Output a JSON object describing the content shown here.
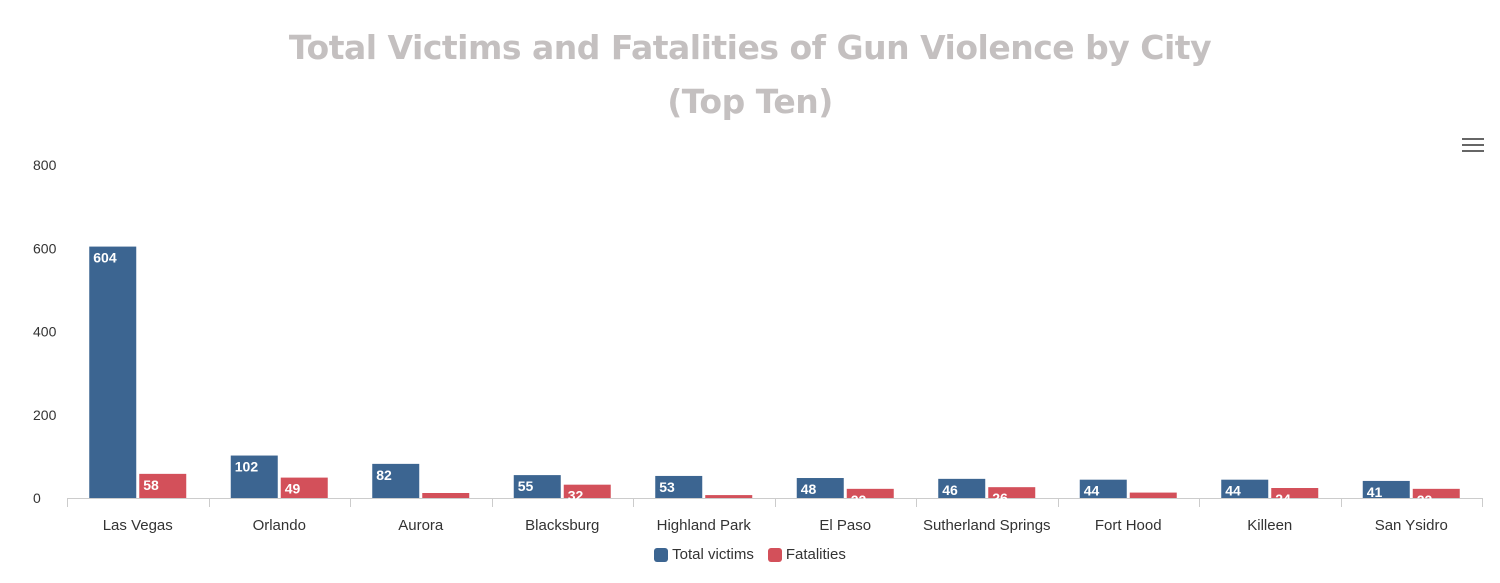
{
  "chart_data": {
    "type": "bar",
    "title_lines": [
      "Total Victims and Fatalities of Gun Violence by City",
      "(Top Ten)"
    ],
    "categories": [
      "Las Vegas",
      "Orlando",
      "Aurora",
      "Blacksburg",
      "Highland Park",
      "El Paso",
      "Sutherland Springs",
      "Fort Hood",
      "Killeen",
      "San Ysidro"
    ],
    "series": [
      {
        "name": "Total victims",
        "color": "#3c6591",
        "values": [
          604,
          102,
          82,
          55,
          53,
          48,
          46,
          44,
          44,
          41
        ]
      },
      {
        "name": "Fatalities",
        "color": "#d3505a",
        "values": [
          58,
          49,
          12,
          32,
          7,
          22,
          26,
          13,
          24,
          22
        ]
      }
    ],
    "ylim": [
      0,
      800
    ],
    "yticks": [
      0,
      200,
      400,
      600,
      800
    ],
    "grid": false,
    "legend_position": "bottom-center",
    "data_labels": true
  },
  "menu_icon": "hamburger-menu-icon"
}
